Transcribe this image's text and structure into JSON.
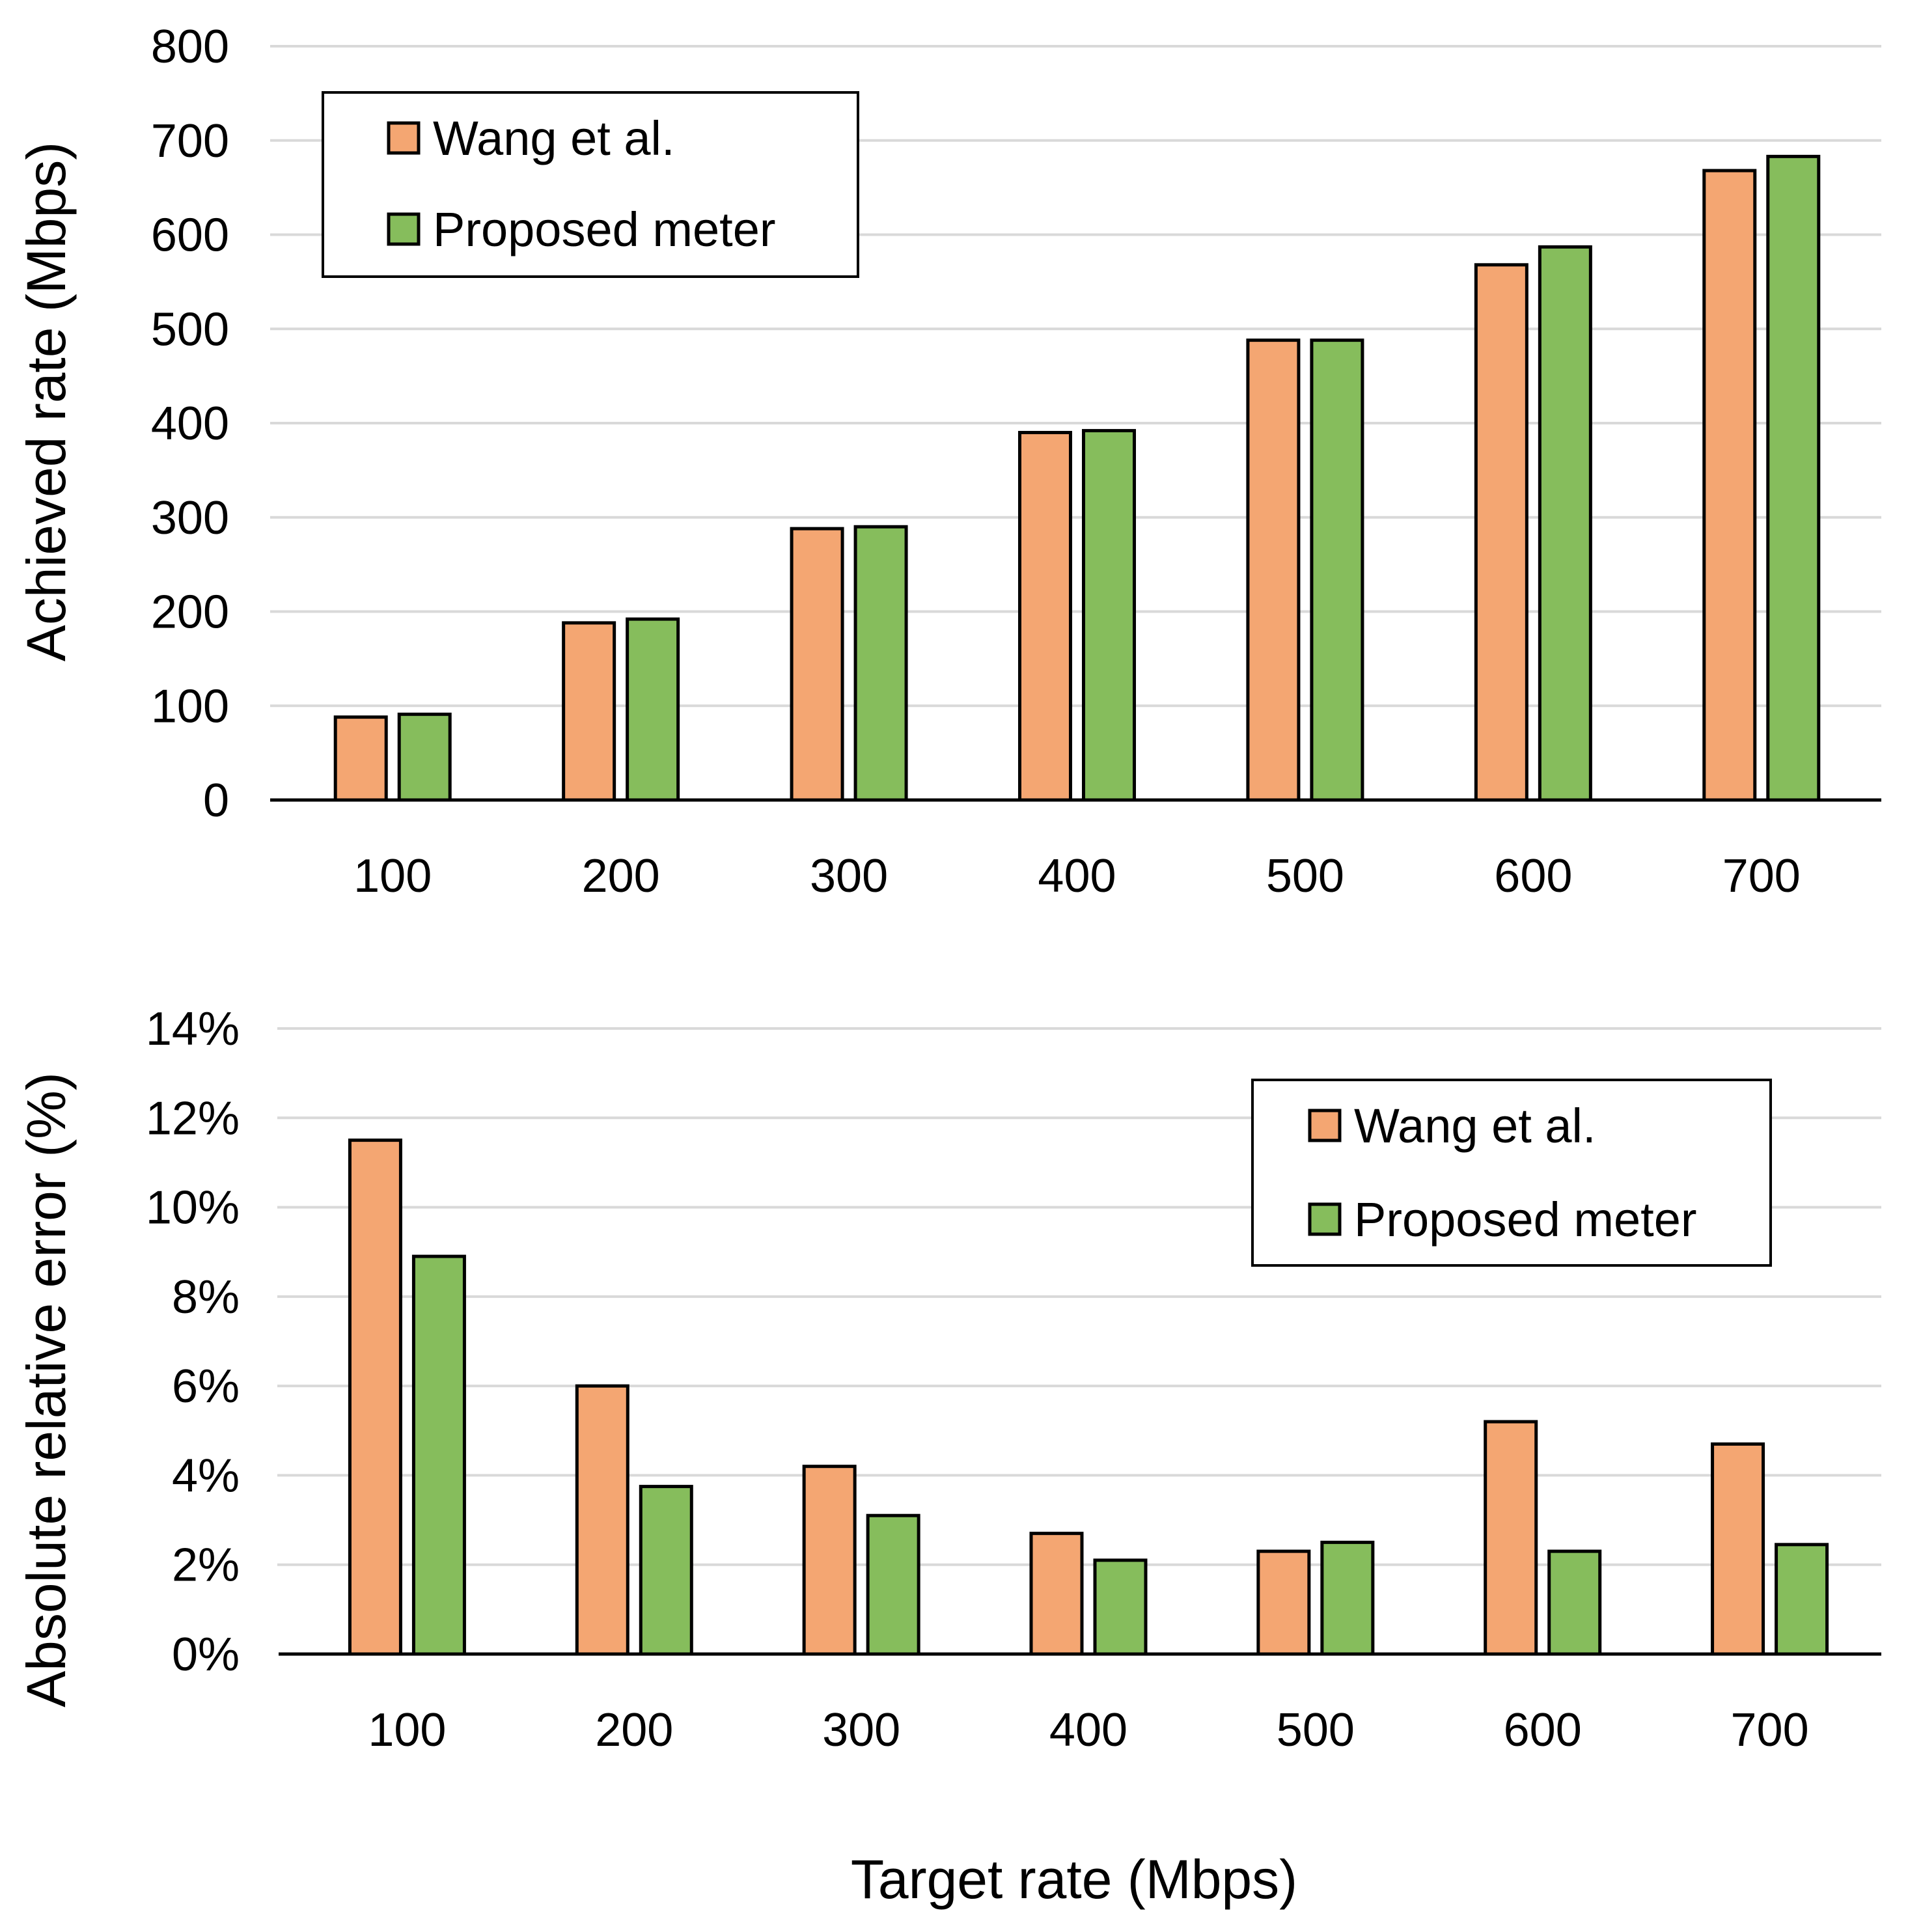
{
  "figure": {
    "xlabel": "Target rate (Mbps)"
  },
  "colors": {
    "wang": "#F4A672",
    "proposed": "#86BD5C",
    "grid": "#d9d9d9",
    "axis": "#000000"
  },
  "chart_data": [
    {
      "type": "bar",
      "title": "",
      "ylabel": "Achieved rate (Mbps)",
      "xlabel": "Target rate (Mbps)",
      "categories": [
        "100",
        "200",
        "300",
        "400",
        "500",
        "600",
        "700"
      ],
      "series": [
        {
          "name": "Wang et al.",
          "values": [
            88,
            188,
            288,
            390,
            488,
            568,
            668
          ]
        },
        {
          "name": "Proposed meter",
          "values": [
            91,
            192,
            290,
            392,
            488,
            587,
            683
          ]
        }
      ],
      "ylim": [
        0,
        800
      ],
      "yticks": [
        "0",
        "100",
        "200",
        "300",
        "400",
        "500",
        "600",
        "700",
        "800"
      ],
      "grid": true,
      "legend": "top-left",
      "legend_labels": [
        "Wang et al.",
        "Proposed meter"
      ]
    },
    {
      "type": "bar",
      "title": "",
      "ylabel": "Absolute relative error (%)",
      "xlabel": "Target rate (Mbps)",
      "categories": [
        "100",
        "200",
        "300",
        "400",
        "500",
        "600",
        "700"
      ],
      "series": [
        {
          "name": "Wang et al.",
          "values": [
            11.5,
            6.0,
            4.2,
            2.7,
            2.3,
            5.2,
            4.7
          ]
        },
        {
          "name": "Proposed meter",
          "values": [
            8.9,
            3.75,
            3.1,
            2.1,
            2.5,
            2.3,
            2.45
          ]
        }
      ],
      "ylim": [
        0,
        14
      ],
      "yticks": [
        "0%",
        "2%",
        "4%",
        "6%",
        "8%",
        "10%",
        "12%",
        "14%"
      ],
      "grid": true,
      "legend": "top-right",
      "legend_labels": [
        "Wang et al.",
        "Proposed meter"
      ]
    }
  ]
}
